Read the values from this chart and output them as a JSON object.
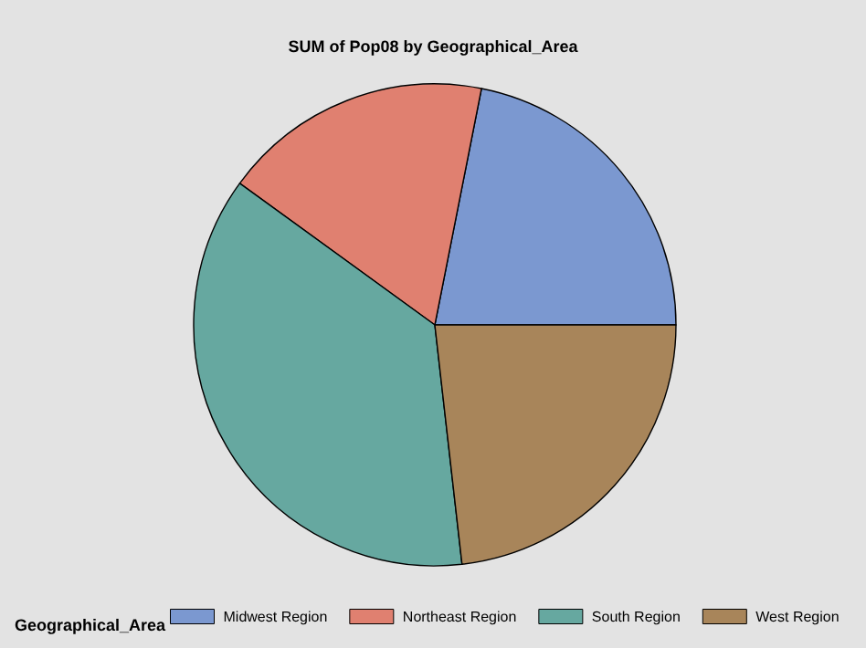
{
  "chart_data": {
    "type": "pie",
    "title": "SUM of Pop08 by Geographical_Area",
    "legend_title": "Geographical_Area",
    "legend": "bottom",
    "categories": [
      "Midwest Region",
      "Northeast Region",
      "South Region",
      "West Region"
    ],
    "values": [
      21.9,
      18.1,
      36.8,
      23.2
    ],
    "colors": [
      "#7b98d0",
      "#e08070",
      "#66a8a0",
      "#a8855a"
    ]
  }
}
